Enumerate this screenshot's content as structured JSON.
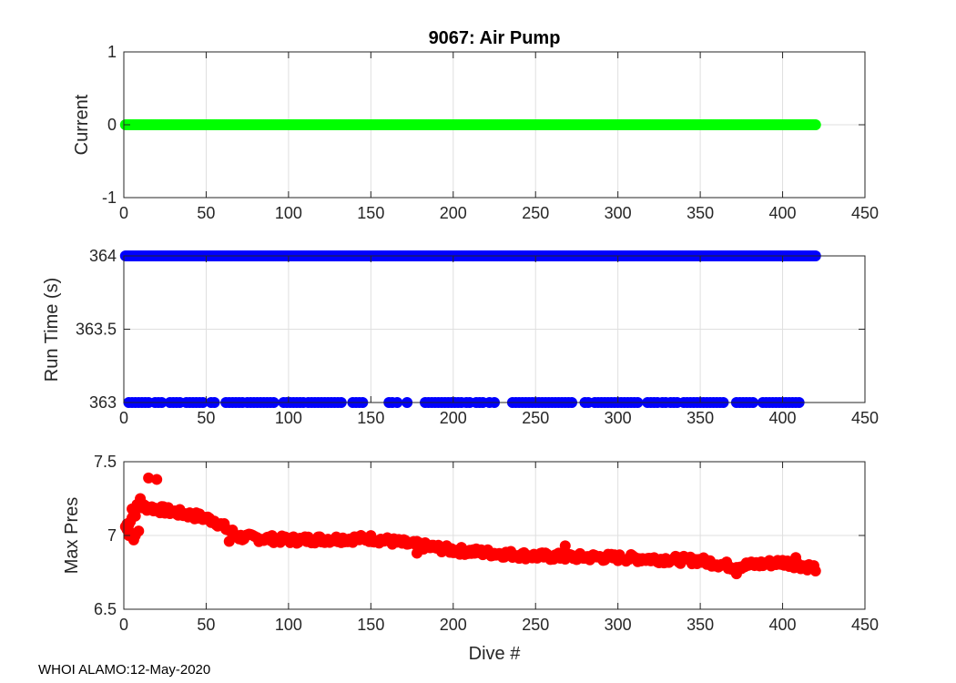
{
  "footer": "WHOI ALAMO:12-May-2020",
  "chart_data": [
    {
      "type": "scatter",
      "title": "9067: Air Pump",
      "xlabel": "",
      "ylabel": "Current",
      "xlim": [
        0,
        450
      ],
      "ylim": [
        -1,
        1
      ],
      "xticks": [
        0,
        50,
        100,
        150,
        200,
        250,
        300,
        350,
        400,
        450
      ],
      "yticks": [
        -1,
        0,
        1
      ],
      "yticklabels": [
        "-1",
        "0",
        "1"
      ],
      "grid": true,
      "color": "#00ff00",
      "series": [
        {
          "x_range": [
            1,
            420
          ],
          "y": 0
        }
      ]
    },
    {
      "type": "scatter",
      "title": "",
      "xlabel": "",
      "ylabel": "Run Time (s)",
      "xlim": [
        0,
        450
      ],
      "ylim": [
        363,
        364
      ],
      "xticks": [
        0,
        50,
        100,
        150,
        200,
        250,
        300,
        350,
        400,
        450
      ],
      "yticks": [
        363,
        363.5,
        364
      ],
      "yticklabels": [
        "363",
        "363.5",
        "364"
      ],
      "grid": true,
      "color": "#0000ff",
      "series": [
        {
          "y": 364,
          "x_range": [
            1,
            420
          ]
        },
        {
          "y": 363,
          "x": [
            3,
            5,
            7,
            9,
            11,
            13,
            15,
            19,
            21,
            23,
            28,
            30,
            32,
            34,
            38,
            40,
            42,
            44,
            46,
            48,
            53,
            55,
            62,
            64,
            66,
            68,
            70,
            72,
            75,
            77,
            79,
            81,
            83,
            85,
            87,
            89,
            91,
            97,
            99,
            101,
            103,
            105,
            107,
            109,
            112,
            114,
            116,
            118,
            120,
            122,
            124,
            126,
            128,
            130,
            132,
            139,
            141,
            143,
            145,
            161,
            163,
            166,
            172,
            183,
            185,
            187,
            189,
            191,
            193,
            195,
            197,
            199,
            201,
            203,
            205,
            208,
            210,
            214,
            216,
            218,
            222,
            225,
            236,
            238,
            240,
            242,
            244,
            246,
            248,
            250,
            252,
            254,
            256,
            258,
            260,
            262,
            264,
            266,
            268,
            270,
            272,
            280,
            282,
            286,
            288,
            290,
            292,
            294,
            296,
            298,
            300,
            302,
            304,
            306,
            308,
            310,
            312,
            318,
            320,
            322,
            324,
            327,
            329,
            332,
            334,
            336,
            340,
            342,
            344,
            346,
            348,
            350,
            352,
            354,
            356,
            358,
            360,
            362,
            364,
            372,
            374,
            376,
            378,
            380,
            382,
            388,
            390,
            392,
            394,
            396,
            398,
            400,
            402,
            404,
            406,
            408,
            410
          ]
        }
      ]
    },
    {
      "type": "scatter",
      "title": "",
      "xlabel": "Dive #",
      "ylabel": "Max Pres",
      "xlim": [
        0,
        450
      ],
      "ylim": [
        6.5,
        7.5
      ],
      "xticks": [
        0,
        50,
        100,
        150,
        200,
        250,
        300,
        350,
        400,
        450
      ],
      "yticks": [
        6.5,
        7,
        7.5
      ],
      "yticklabels": [
        "6.5",
        "7",
        "7.5"
      ],
      "grid": true,
      "color": "#ff0000",
      "series": [
        {
          "trend_points": [
            [
              1,
              7.06
            ],
            [
              10,
              7.2
            ],
            [
              30,
              7.16
            ],
            [
              45,
              7.13
            ],
            [
              55,
              7.1
            ],
            [
              62,
              7.05
            ],
            [
              70,
              6.99
            ],
            [
              100,
              6.97
            ],
            [
              150,
              6.98
            ],
            [
              200,
              6.9
            ],
            [
              250,
              6.86
            ],
            [
              300,
              6.85
            ],
            [
              350,
              6.83
            ],
            [
              370,
              6.79
            ],
            [
              400,
              6.82
            ],
            [
              420,
              6.78
            ]
          ],
          "outliers": [
            [
              2,
              7.04
            ],
            [
              3,
              7.0
            ],
            [
              4,
              7.02
            ],
            [
              5,
              7.18
            ],
            [
              6,
              6.97
            ],
            [
              7,
              7.0
            ],
            [
              8,
              7.21
            ],
            [
              9,
              7.03
            ],
            [
              10,
              7.25
            ],
            [
              15,
              7.39
            ],
            [
              20,
              7.38
            ],
            [
              64,
              6.96
            ],
            [
              178,
              6.88
            ],
            [
              268,
              6.93
            ],
            [
              372,
              6.74
            ],
            [
              408,
              6.85
            ]
          ]
        }
      ]
    }
  ]
}
